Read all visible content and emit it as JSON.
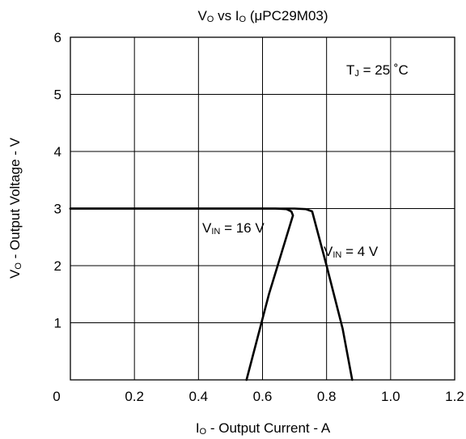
{
  "chart_data": {
    "type": "line",
    "title": {
      "main": "V",
      "sub": "O",
      "rest": " vs I",
      "sub2": "O",
      "tail": " (μPC29M03)"
    },
    "xlabel": {
      "main": "I",
      "sub": "O",
      "rest": " - Output Current - A"
    },
    "ylabel": {
      "main": "V",
      "sub": "O",
      "rest": " - Output Voltage - V"
    },
    "xlim": [
      0,
      1.2
    ],
    "ylim": [
      0,
      6
    ],
    "x_ticks": [
      "0",
      "0.2",
      "0.4",
      "0.6",
      "0.8",
      "1.0",
      "1.2"
    ],
    "y_ticks": [
      "1",
      "2",
      "3",
      "4",
      "5",
      "6"
    ],
    "grid": true,
    "series": [
      {
        "name": "VIN = 16 V",
        "points": [
          [
            0,
            3.0
          ],
          [
            0.64,
            3.0
          ],
          [
            0.675,
            2.99
          ],
          [
            0.69,
            2.95
          ],
          [
            0.695,
            2.88
          ],
          [
            0.62,
            1.5
          ],
          [
            0.55,
            0.0
          ]
        ]
      },
      {
        "name": "VIN = 4 V",
        "points": [
          [
            0,
            3.0
          ],
          [
            0.7,
            3.0
          ],
          [
            0.735,
            2.99
          ],
          [
            0.755,
            2.95
          ],
          [
            0.8,
            2.0
          ],
          [
            0.85,
            0.9
          ],
          [
            0.88,
            0.0
          ]
        ]
      }
    ],
    "annotations": [
      {
        "label": {
          "main": "V",
          "sub": "IN",
          "rest": " = 16 V"
        },
        "series": "VIN = 16 V"
      },
      {
        "label": {
          "main": "V",
          "sub": "IN",
          "rest": " = 4 V"
        },
        "series": "VIN = 4 V"
      },
      {
        "label": {
          "main": "T",
          "sub": "J",
          "rest": " = 25 ˚C"
        }
      }
    ]
  }
}
